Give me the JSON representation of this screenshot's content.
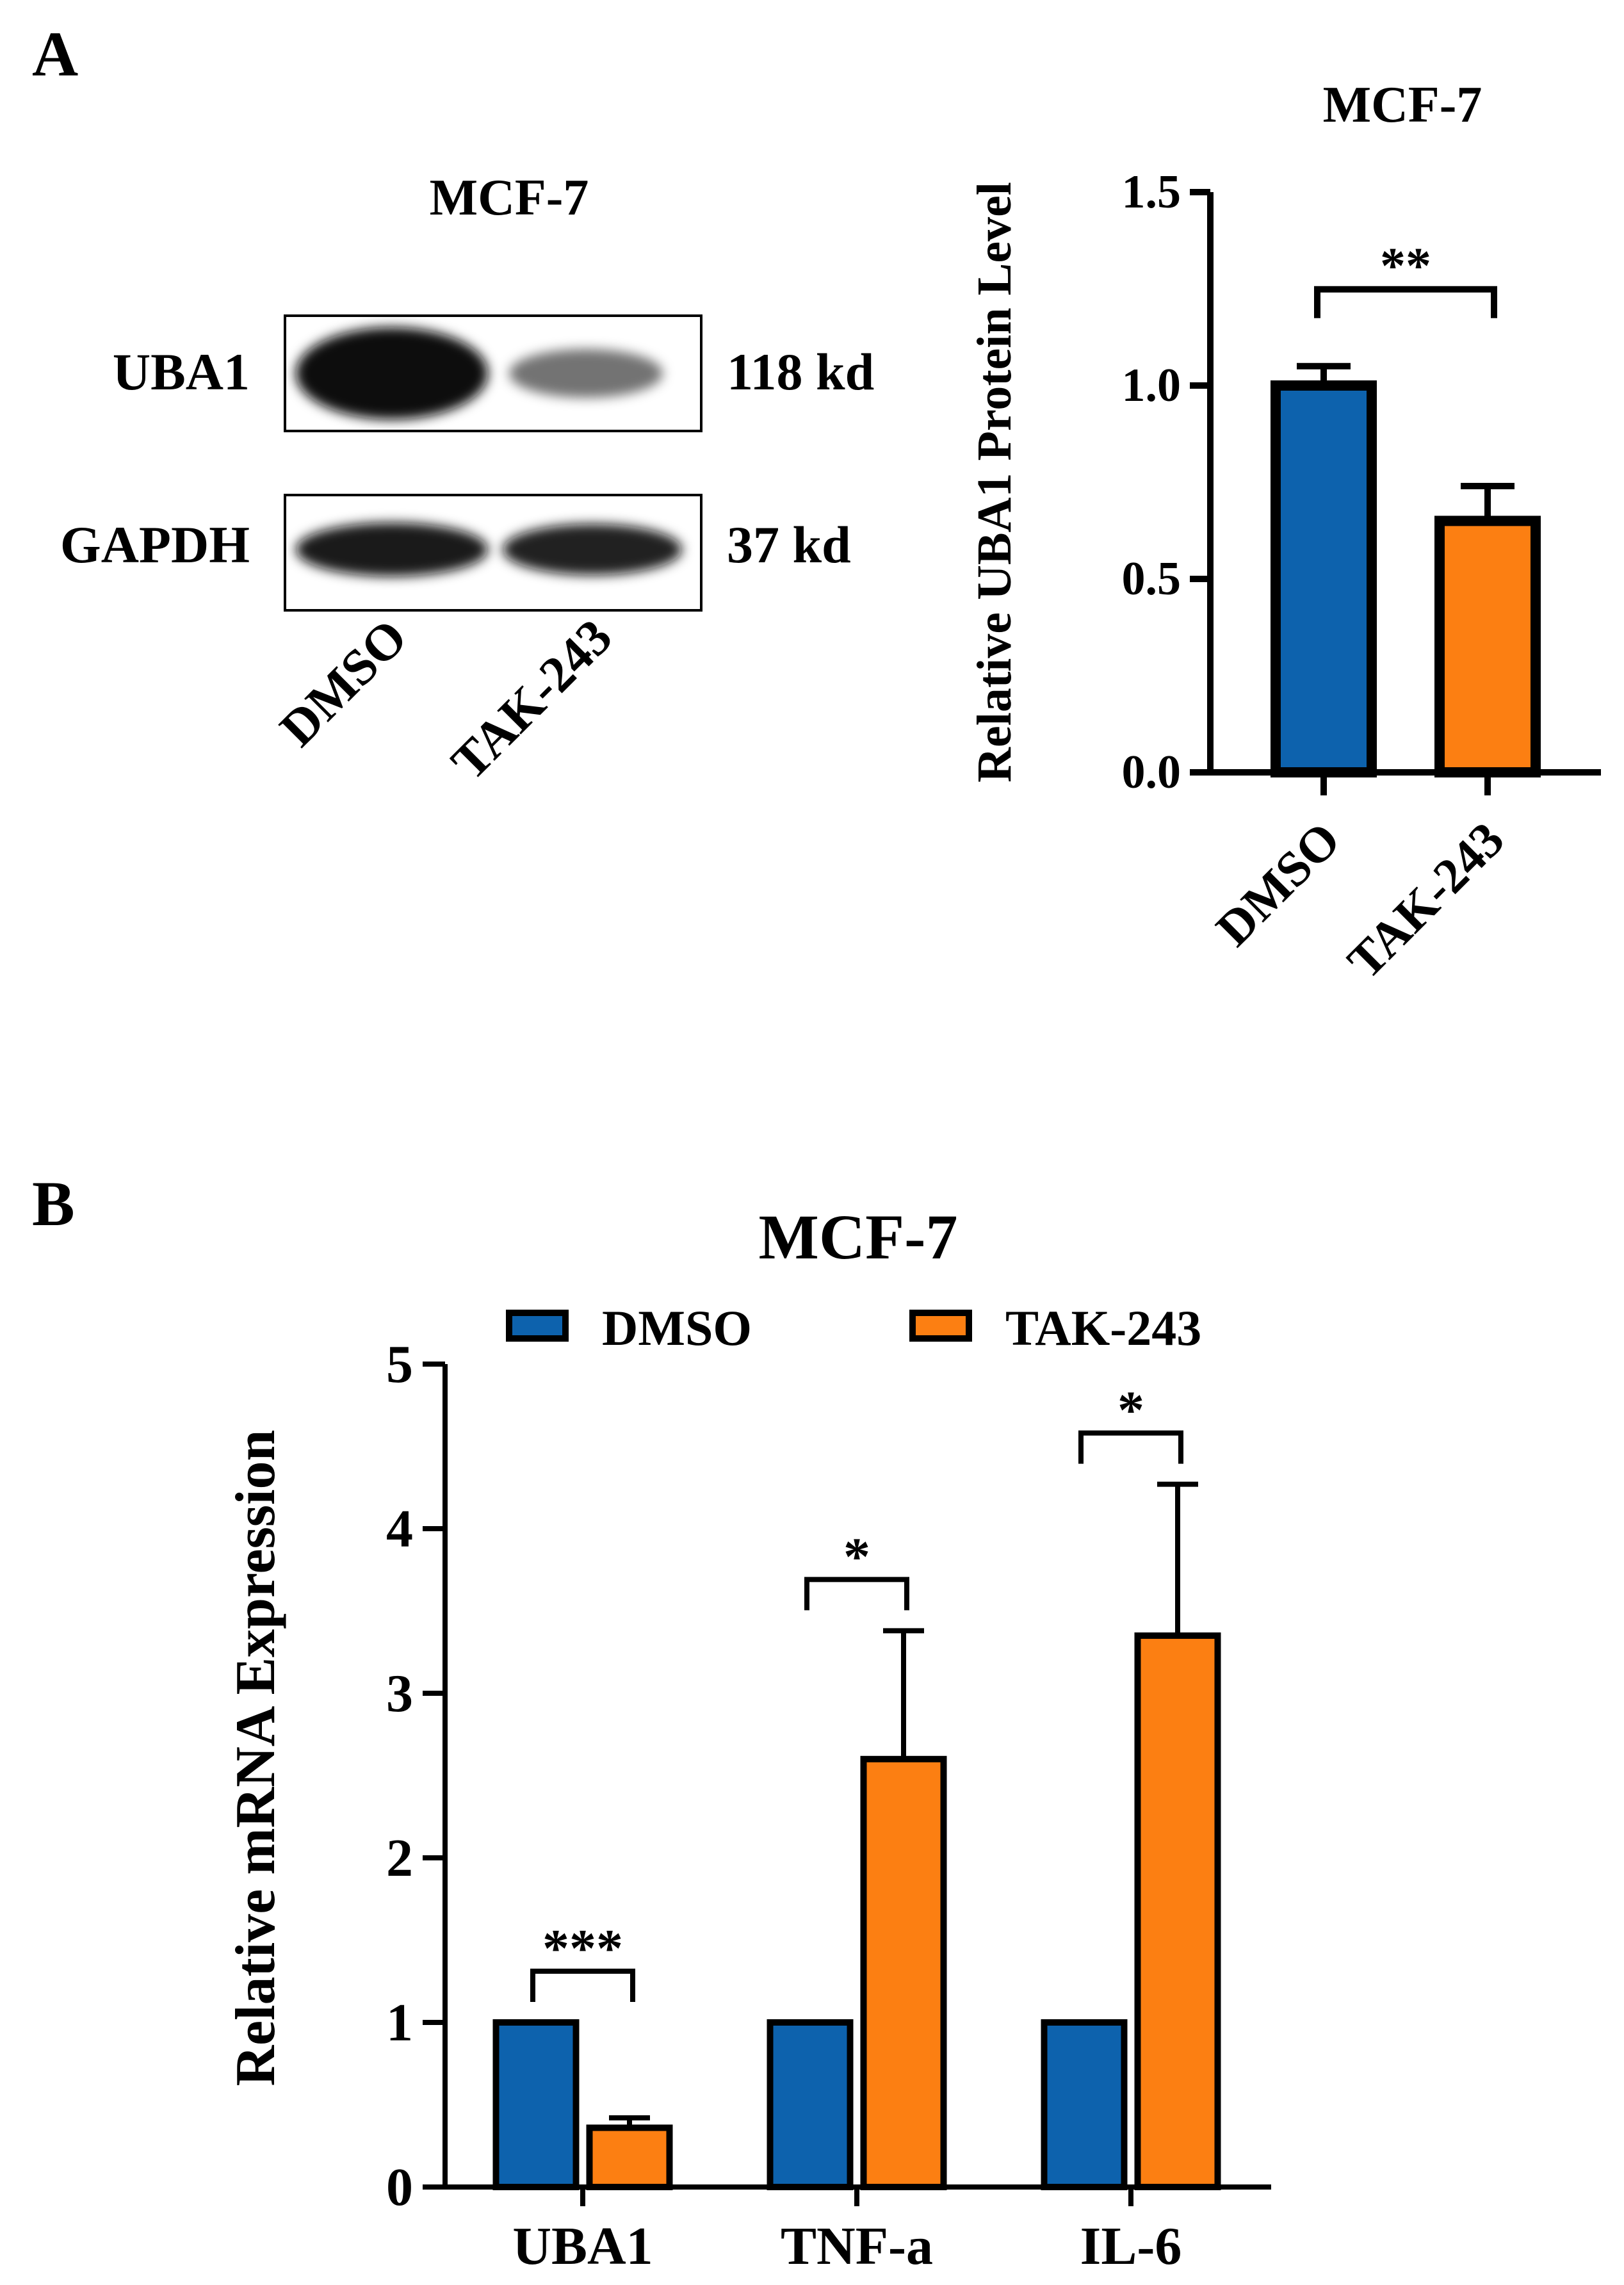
{
  "panel_a": {
    "label": "A",
    "blot": {
      "title": "MCF-7",
      "rows": [
        {
          "protein": "UBA1",
          "size": "118 kd",
          "band_intensity": [
            1.0,
            0.55
          ]
        },
        {
          "protein": "GAPDH",
          "size": "37 kd",
          "band_intensity": [
            0.95,
            0.92
          ]
        }
      ],
      "lanes": [
        "DMSO",
        "TAK-243"
      ]
    }
  },
  "panel_b": {
    "label": "B"
  },
  "colors": {
    "dmso": "#0d62ad",
    "tak": "#fc7f12",
    "band": "#0a0a0a"
  },
  "chart_data": [
    {
      "type": "bar",
      "title": "MCF-7",
      "ylabel": "Relative UBA1 Protein Level",
      "xlabel": "",
      "categories": [
        "DMSO",
        "TAK-243"
      ],
      "values": [
        1.0,
        0.65
      ],
      "errors": [
        0.05,
        0.09
      ],
      "colors": [
        "#0d62ad",
        "#fc7f12"
      ],
      "ylim": [
        0,
        1.5
      ],
      "yticks": [
        "0.0",
        "0.5",
        "1.0",
        "1.5"
      ],
      "significance": [
        {
          "from": 0,
          "to": 1,
          "label": "**"
        }
      ]
    },
    {
      "type": "bar",
      "title": "MCF-7",
      "ylabel": "Relative mRNA Expression",
      "xlabel": "",
      "categories": [
        "UBA1",
        "TNF-a",
        "IL-6"
      ],
      "series": [
        {
          "name": "DMSO",
          "color": "#0d62ad",
          "values": [
            1.0,
            1.0,
            1.0
          ],
          "errors": [
            0,
            0,
            0
          ]
        },
        {
          "name": "TAK-243",
          "color": "#fc7f12",
          "values": [
            0.36,
            2.6,
            3.35
          ],
          "errors": [
            0.06,
            0.78,
            0.92
          ]
        }
      ],
      "ylim": [
        0,
        5
      ],
      "yticks": [
        "0",
        "1",
        "2",
        "3",
        "4",
        "5"
      ],
      "legend": "top",
      "significance": [
        {
          "category": 0,
          "label": "***"
        },
        {
          "category": 1,
          "label": "*"
        },
        {
          "category": 2,
          "label": "*"
        }
      ]
    }
  ]
}
